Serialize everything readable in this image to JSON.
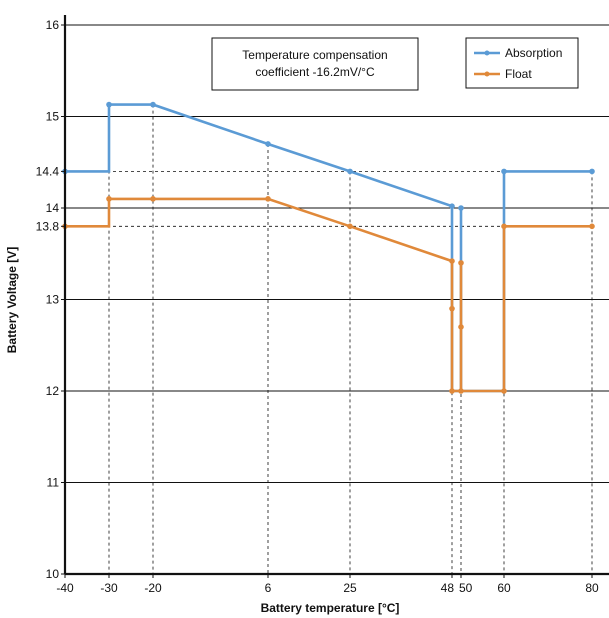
{
  "chart_data": {
    "type": "line",
    "title": "",
    "xlabel": "Battery temperature [°C]",
    "ylabel": "Battery Voltage [V]",
    "x_ticks": [
      "-40",
      "-30",
      "-20",
      "6",
      "25",
      "48",
      "50",
      "60",
      "80"
    ],
    "y_ticks": [
      "10",
      "11",
      "12",
      "13",
      "13.8",
      "14",
      "14.4",
      "15",
      "16"
    ],
    "ylim": [
      10,
      16
    ],
    "grid": "horizontal solid at integer volts; dashed reference lines at 13.8 V, 14.4 V and at x ticks",
    "legend_position": "top-right",
    "annotation": [
      "Temperature compensation",
      "coefficient -16.2mV/°C"
    ],
    "colors": {
      "absorption": "#5b9bd5",
      "float": "#e0893a",
      "axis": "#111111",
      "grid": "#111111"
    },
    "series": [
      {
        "name": "Absorption",
        "color": "#5b9bd5",
        "points": [
          [
            -40,
            14.4
          ],
          [
            -30,
            14.4
          ],
          [
            -30,
            15.13
          ],
          [
            -20,
            15.13
          ],
          [
            6,
            14.7
          ],
          [
            25,
            14.4
          ],
          [
            48,
            14.02
          ],
          [
            48,
            12.0
          ],
          [
            50,
            12.0
          ],
          [
            50,
            14.0
          ],
          [
            50,
            12.0
          ],
          [
            60,
            12.0
          ],
          [
            60,
            14.4
          ],
          [
            80,
            14.4
          ]
        ],
        "markers": [
          [
            -40,
            14.4
          ],
          [
            -30,
            15.13
          ],
          [
            -20,
            15.13
          ],
          [
            6,
            14.7
          ],
          [
            25,
            14.4
          ],
          [
            48,
            14.02
          ],
          [
            50,
            14.0
          ],
          [
            60,
            14.4
          ],
          [
            80,
            14.4
          ]
        ]
      },
      {
        "name": "Float",
        "color": "#e0893a",
        "points": [
          [
            -40,
            13.8
          ],
          [
            -30,
            13.8
          ],
          [
            -30,
            14.1
          ],
          [
            -20,
            14.1
          ],
          [
            6,
            14.1
          ],
          [
            25,
            13.8
          ],
          [
            48,
            13.42
          ],
          [
            48,
            12.0
          ],
          [
            50,
            12.0
          ],
          [
            50,
            13.4
          ],
          [
            50,
            12.0
          ],
          [
            60,
            12.0
          ],
          [
            60,
            13.8
          ],
          [
            80,
            13.8
          ]
        ],
        "markers": [
          [
            -40,
            13.8
          ],
          [
            -30,
            14.1
          ],
          [
            -20,
            14.1
          ],
          [
            6,
            14.1
          ],
          [
            25,
            13.8
          ],
          [
            48,
            13.42
          ],
          [
            50,
            13.4
          ],
          [
            48,
            12.0
          ],
          [
            50,
            12.0
          ],
          [
            60,
            12.0
          ],
          [
            60,
            13.8
          ],
          [
            80,
            13.8
          ],
          [
            48,
            12.9
          ],
          [
            50,
            12.7
          ]
        ]
      }
    ]
  }
}
